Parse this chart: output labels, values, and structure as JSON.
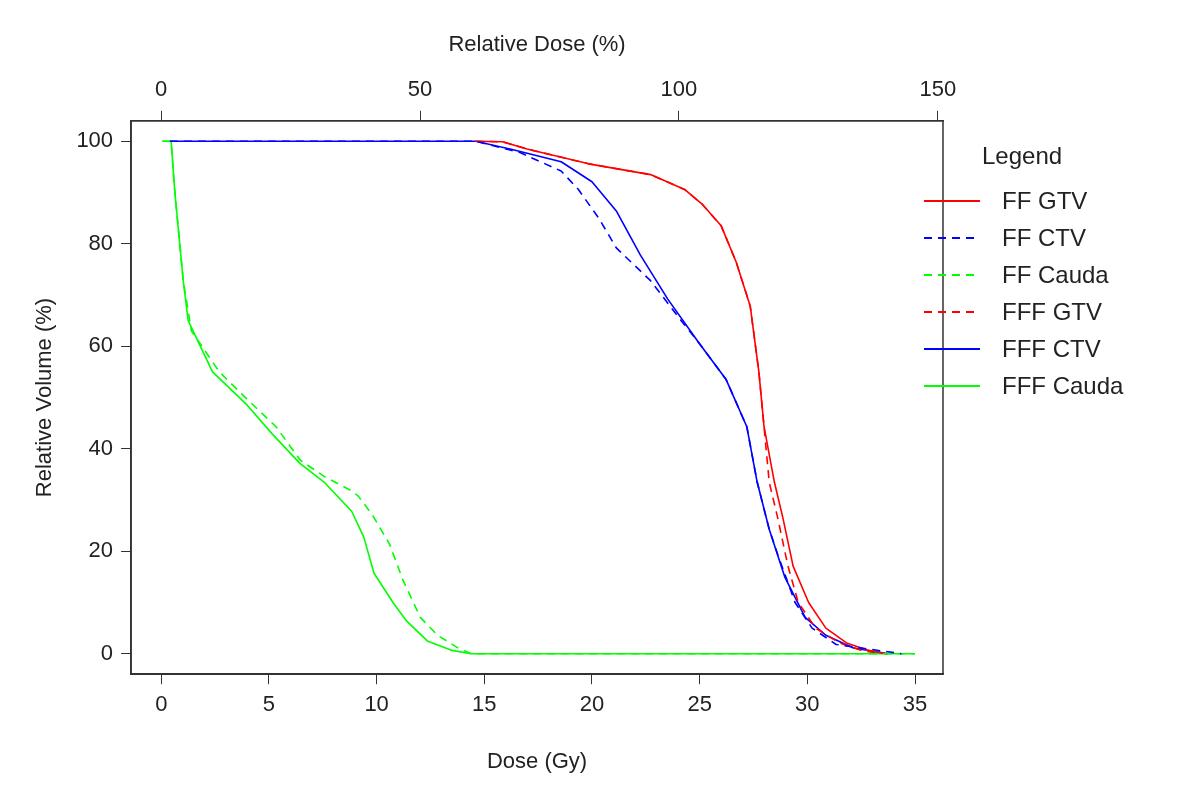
{
  "chart_data": {
    "type": "line",
    "xlabel": "Dose (Gy)",
    "x2label": "Relative Dose (%)",
    "ylabel": "Relative Volume (%)",
    "legend_title": "Legend",
    "legend": "right",
    "grid": false,
    "marker": "none",
    "xlim": [
      -1.4,
      36.3
    ],
    "xticks": [
      0,
      5,
      10,
      15,
      20,
      25,
      30,
      35
    ],
    "x2lim": [
      -5.8,
      151
    ],
    "x2ticks": [
      0,
      50,
      100,
      150
    ],
    "ylim": [
      -4,
      104
    ],
    "yticks": [
      0,
      20,
      40,
      60,
      80,
      100
    ],
    "series": [
      {
        "name": "FF GTV",
        "color": "#ff0000",
        "line_style": "solid",
        "x": [
          14.6,
          15.85,
          16.98,
          19.85,
          22.72,
          24.3,
          25.1,
          26,
          26.7,
          27.35,
          27.75,
          27.99,
          28.47,
          28.87,
          29.34,
          30.06,
          30.86,
          31.82,
          32.78,
          33.73
        ],
        "values": [
          100,
          99.9,
          98.5,
          95.6,
          93.5,
          90.6,
          87.8,
          83.5,
          76.4,
          67.8,
          55,
          44.3,
          33.5,
          26.4,
          17.1,
          10,
          5,
          2.1,
          0.7,
          0
        ]
      },
      {
        "name": "FF CTV",
        "color": "#0000ff",
        "line_style": "dashed",
        "x": [
          0.4,
          14.6,
          16.66,
          18.57,
          19.37,
          20.33,
          21.13,
          22.72,
          24.16,
          24.96,
          26.23,
          27.19,
          27.67,
          28.23,
          28.63,
          29.43,
          30.22,
          31.34,
          34.37
        ],
        "values": [
          100,
          100,
          97.8,
          94.2,
          90.6,
          84.9,
          79.2,
          72.8,
          64.9,
          60.7,
          53.5,
          44.3,
          33.5,
          24.3,
          19.3,
          10,
          5,
          1.8,
          0
        ]
      },
      {
        "name": "FF Cauda",
        "color": "#00ff00",
        "line_style": "dashed",
        "x": [
          0.05,
          0.46,
          0.62,
          0.86,
          1.02,
          1.4,
          2.7,
          3.73,
          5.33,
          6.45,
          7.56,
          8.84,
          9.16,
          9.8,
          10.6,
          11.23,
          12.03,
          12.83,
          13.79,
          14.4,
          35
        ],
        "values": [
          100,
          100,
          90.6,
          79.9,
          72.8,
          63,
          55,
          50.7,
          44.3,
          37.8,
          34.6,
          31.8,
          30.7,
          27.1,
          21.4,
          14.3,
          7.1,
          3.6,
          1.1,
          0,
          0
        ]
      },
      {
        "name": "FFF GTV",
        "color": "#ff0000",
        "line_style": "dashed",
        "x": [
          14.6,
          15.85,
          16.98,
          19.85,
          22.72,
          24.3,
          25.1,
          26,
          26.7,
          27.35,
          27.75,
          27.99,
          28.23,
          28.63,
          29.1,
          29.58,
          30.38,
          31.5,
          32.46,
          33.4
        ],
        "values": [
          100,
          99.9,
          98.5,
          95.6,
          93.5,
          90.6,
          87.8,
          83.5,
          76.4,
          67.8,
          55,
          44.3,
          33.5,
          26.4,
          17.1,
          10,
          5,
          2.1,
          0.7,
          0
        ]
      },
      {
        "name": "FFF CTV",
        "color": "#0000ff",
        "line_style": "solid",
        "x": [
          0.4,
          14.6,
          16.2,
          18.57,
          20,
          21.13,
          22.25,
          23.52,
          24.96,
          26.23,
          27.19,
          27.67,
          28.23,
          28.95,
          29.9,
          30.86,
          32.14,
          33.73
        ],
        "values": [
          100,
          100,
          98.5,
          96,
          92.1,
          86.4,
          77.8,
          69.2,
          60.7,
          53.5,
          44.3,
          33.5,
          24.3,
          15,
          7.1,
          3.6,
          1.1,
          0
        ]
      },
      {
        "name": "FFF Cauda",
        "color": "#00ff00",
        "line_style": "solid",
        "x": [
          0.05,
          0.46,
          0.62,
          0.86,
          1.02,
          1.25,
          2.38,
          3.97,
          5.17,
          6.45,
          7.56,
          8.84,
          9.4,
          9.88,
          10.76,
          11.39,
          12.35,
          13.45,
          14.4,
          35
        ],
        "values": [
          100,
          100,
          90.6,
          79.9,
          72.8,
          65,
          55,
          48.6,
          42.8,
          37.1,
          33.5,
          27.8,
          22.8,
          15.7,
          10,
          6.4,
          2.5,
          0.7,
          0,
          0
        ]
      }
    ]
  }
}
